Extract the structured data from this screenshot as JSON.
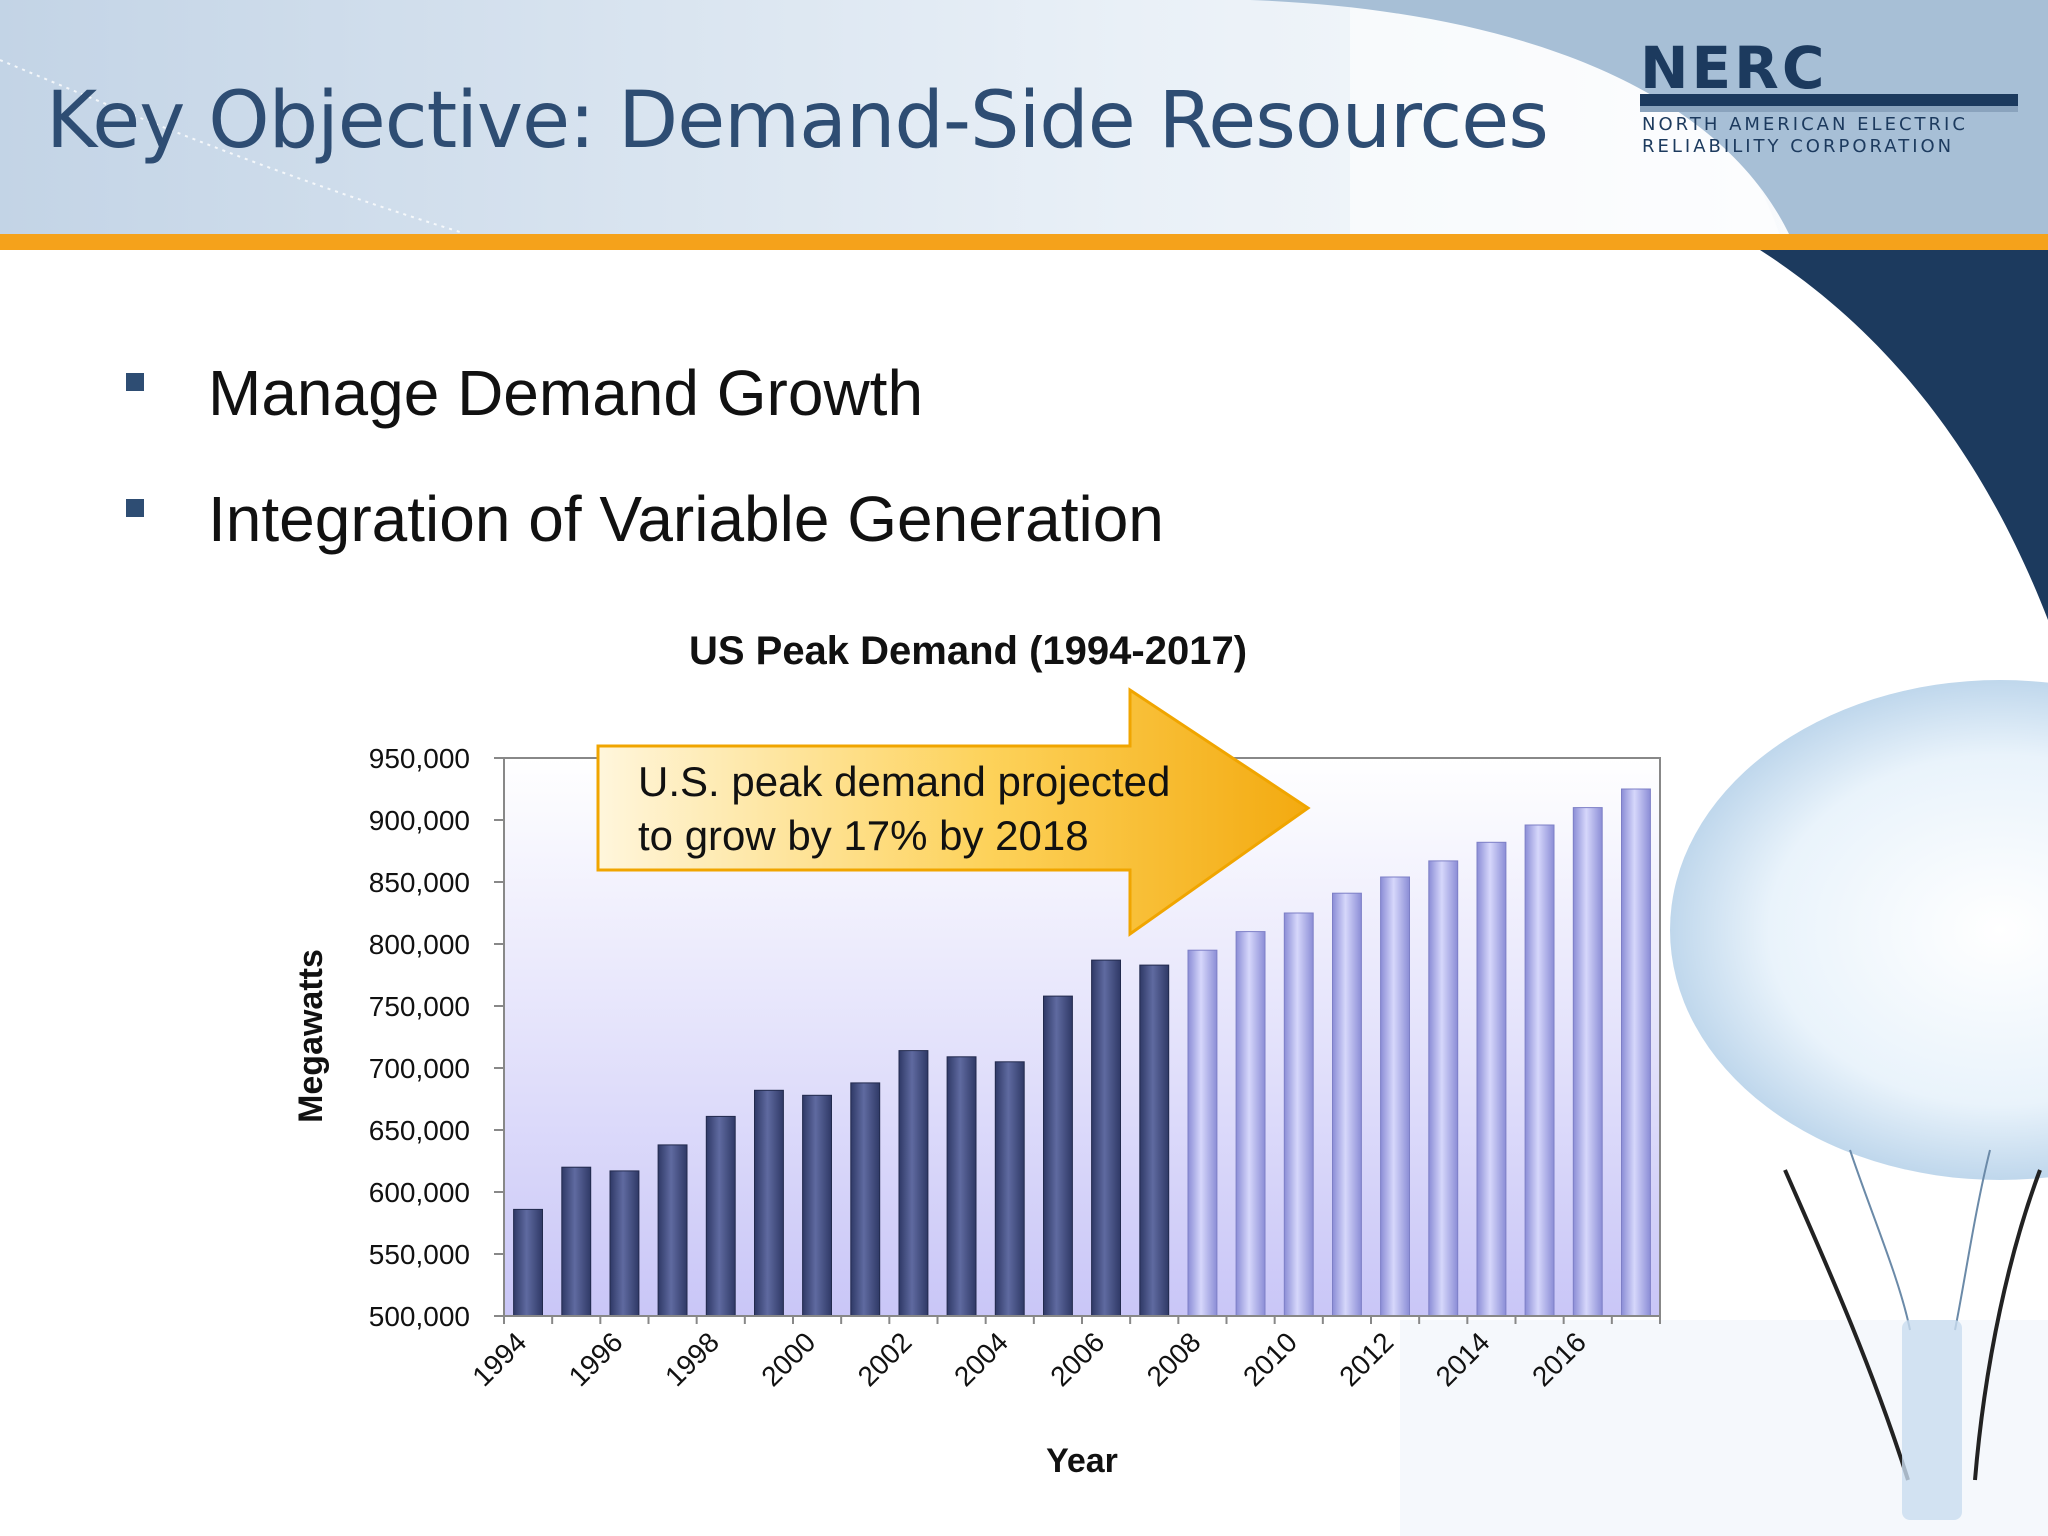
{
  "slide": {
    "title": "Key Objective: Demand-Side Resources",
    "bullets": [
      "Manage Demand Growth",
      "Integration of Variable Generation"
    ]
  },
  "logo": {
    "word": "NERC",
    "line1": "NORTH AMERICAN ELECTRIC",
    "line2": "RELIABILITY CORPORATION"
  },
  "colors": {
    "title": "#2e4d73",
    "accent_bar": "#f5a21b",
    "actual_bar": "#3d4a7e",
    "projected_bar": "#a9aaeb",
    "callout_fill": "#fbc02d"
  },
  "chart_data": {
    "type": "bar",
    "title": "US Peak Demand (1994-2017)",
    "xlabel": "Year",
    "ylabel": "Megawatts",
    "ylim": [
      500000,
      950000
    ],
    "yticks": [
      "950,000",
      "900,000",
      "850,000",
      "800,000",
      "750,000",
      "700,000",
      "650,000",
      "600,000",
      "550,000",
      "500,000"
    ],
    "xticks": [
      "1994",
      "1996",
      "1998",
      "2000",
      "2002",
      "2004",
      "2006",
      "2008",
      "2010",
      "2012",
      "2014",
      "2016"
    ],
    "categories": [
      "1994",
      "1995",
      "1996",
      "1997",
      "1998",
      "1999",
      "2000",
      "2001",
      "2002",
      "2003",
      "2004",
      "2005",
      "2006",
      "2007",
      "2008",
      "2009",
      "2010",
      "2011",
      "2012",
      "2013",
      "2014",
      "2015",
      "2016",
      "2017"
    ],
    "values": [
      586000,
      620000,
      617000,
      638000,
      661000,
      682000,
      678000,
      688000,
      714000,
      709000,
      705000,
      758000,
      787000,
      783000,
      795000,
      810000,
      825000,
      841000,
      854000,
      867000,
      882000,
      896000,
      910000,
      925000
    ],
    "actual_count": 14,
    "grid": false,
    "legend": "none",
    "annotation": {
      "line1": "U.S. peak demand projected",
      "line2": "to grow by 17% by 2018"
    }
  }
}
